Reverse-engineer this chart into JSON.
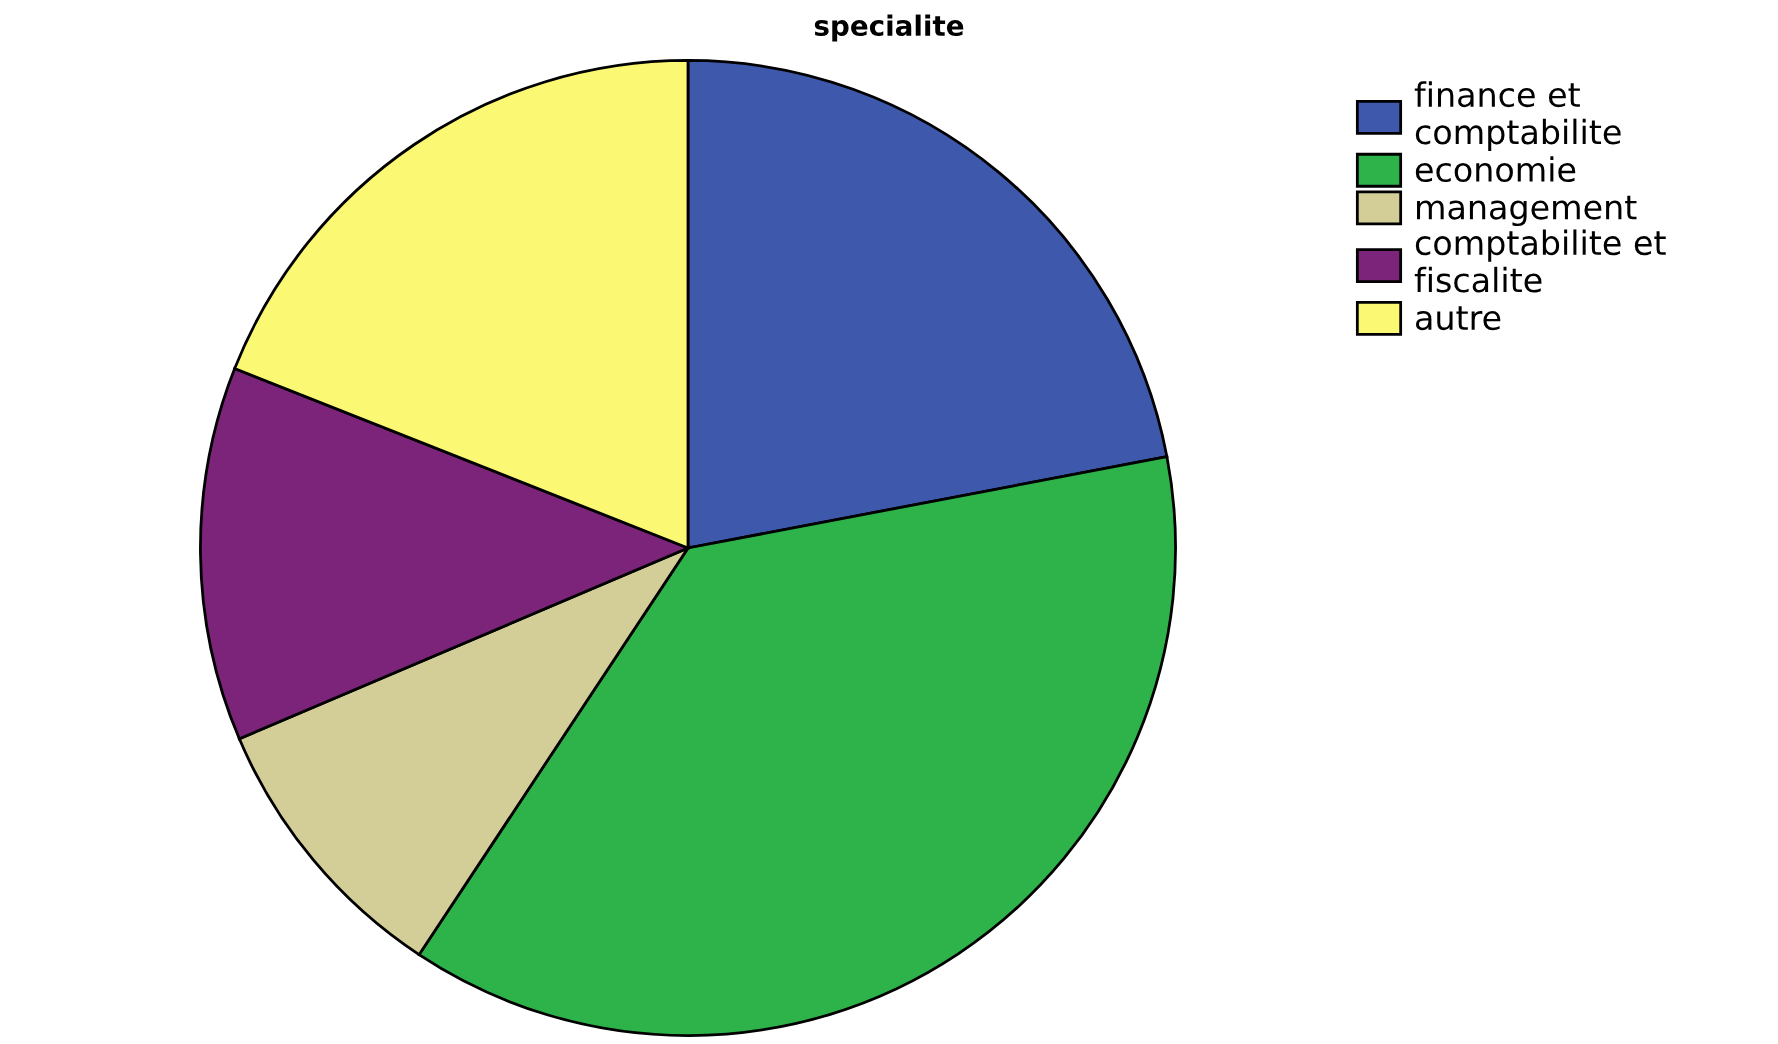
{
  "chart_data": {
    "type": "pie",
    "title": "specialite",
    "categories": [
      "finance et\ncomptabilite",
      "economie",
      "management",
      "comptabilite et\nfiscalite",
      "autre"
    ],
    "values": [
      22.0,
      37.3,
      9.3,
      12.4,
      19.0
    ],
    "colors": [
      "#3e58ac",
      "#2db34a",
      "#d3ce97",
      "#7b2479",
      "#fbf873"
    ],
    "legend": "top right"
  }
}
